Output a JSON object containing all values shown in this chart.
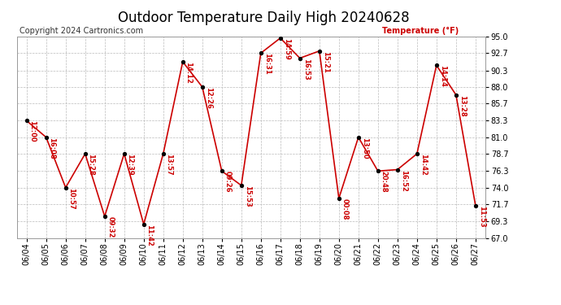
{
  "title": "Outdoor Temperature Daily High 20240628",
  "copyright": "Copyright 2024 Cartronics.com",
  "ylabel": "Temperature (°F)",
  "background_color": "#ffffff",
  "grid_color": "#bbbbbb",
  "line_color": "#cc0000",
  "marker_color": "#000000",
  "label_color": "#cc0000",
  "ylim": [
    67.0,
    95.0
  ],
  "yticks": [
    67.0,
    69.3,
    71.7,
    74.0,
    76.3,
    78.7,
    81.0,
    83.3,
    85.7,
    88.0,
    90.3,
    92.7,
    95.0
  ],
  "dates": [
    "06/04",
    "06/05",
    "06/06",
    "06/07",
    "06/08",
    "06/09",
    "06/10",
    "06/11",
    "06/12",
    "06/13",
    "06/14",
    "06/15",
    "06/16",
    "06/17",
    "06/18",
    "06/19",
    "06/20",
    "06/21",
    "06/22",
    "06/23",
    "06/24",
    "06/25",
    "06/26",
    "06/27"
  ],
  "temps": [
    83.3,
    81.0,
    74.0,
    78.7,
    70.0,
    78.7,
    68.9,
    78.7,
    91.5,
    88.0,
    76.3,
    74.3,
    92.7,
    94.8,
    92.0,
    93.0,
    72.5,
    81.0,
    76.3,
    76.5,
    78.7,
    91.0,
    86.9,
    71.5
  ],
  "time_labels": [
    "12:00",
    "16:08",
    "10:57",
    "15:28",
    "09:32",
    "12:39",
    "11:42",
    "13:57",
    "14:12",
    "12:26",
    "09:26",
    "15:53",
    "16:31",
    "14:59",
    "16:53",
    "15:21",
    "00:08",
    "13:50",
    "20:48",
    "16:52",
    "14:42",
    "14:14",
    "13:28",
    "11:53"
  ],
  "title_fontsize": 12,
  "label_fontsize": 7,
  "tick_fontsize": 7,
  "copyright_fontsize": 7,
  "time_label_fontsize": 6
}
